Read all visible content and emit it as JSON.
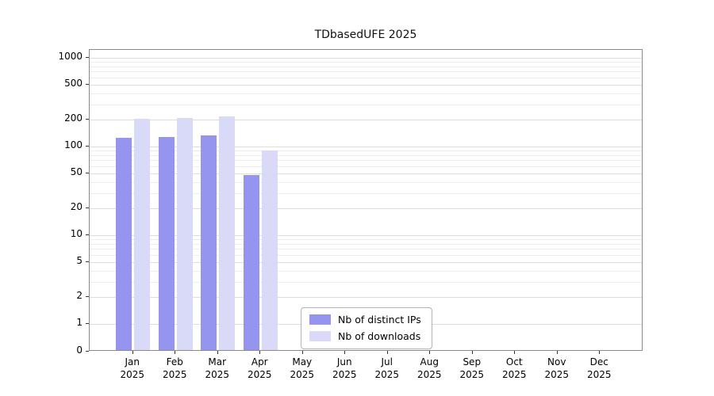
{
  "chart_data": {
    "type": "bar",
    "title": "TDbasedUFE 2025",
    "x_months": [
      "Jan",
      "Feb",
      "Mar",
      "Apr",
      "May",
      "Jun",
      "Jul",
      "Aug",
      "Sep",
      "Oct",
      "Nov",
      "Dec"
    ],
    "x_year": "2025",
    "series": [
      {
        "name": "Nb of distinct IPs",
        "color": "#9595ef",
        "values": [
          125,
          128,
          133,
          48,
          0,
          0,
          0,
          0,
          0,
          0,
          0,
          0
        ]
      },
      {
        "name": "Nb of downloads",
        "color": "#d9d9f8",
        "values": [
          205,
          208,
          220,
          90,
          0,
          0,
          0,
          0,
          0,
          0,
          0,
          0
        ]
      }
    ],
    "y_scale": "log-with-zero",
    "y_ticks": [
      0,
      1,
      2,
      5,
      10,
      20,
      50,
      100,
      200,
      500,
      1000
    ],
    "y_minor_ticks": [
      3,
      4,
      6,
      7,
      8,
      9,
      30,
      40,
      60,
      70,
      80,
      90,
      300,
      400,
      600,
      700,
      800,
      900
    ],
    "ylim": [
      0,
      1230
    ],
    "grid": true,
    "legend_position": "lower-center"
  }
}
